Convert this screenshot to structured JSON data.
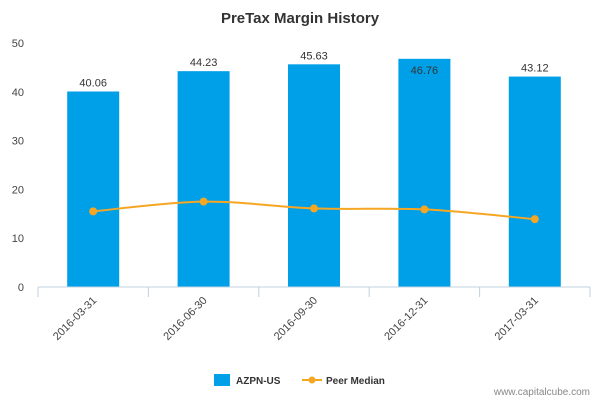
{
  "chart_data": {
    "type": "bar",
    "title": "PreTax Margin History",
    "categories": [
      "2016-03-31",
      "2016-06-30",
      "2016-09-30",
      "2016-12-31",
      "2017-03-31"
    ],
    "series": [
      {
        "name": "AZPN-US",
        "kind": "bar",
        "color": "#00a0e9",
        "values": [
          40.06,
          44.23,
          45.63,
          46.76,
          43.12
        ],
        "labels": [
          "40.06",
          "44.23",
          "45.63",
          "46.76",
          "43.12"
        ]
      },
      {
        "name": "Peer Median",
        "kind": "line",
        "color": "#f5a623",
        "values": [
          15.5,
          17.5,
          16.1,
          15.9,
          13.9
        ]
      }
    ],
    "ylim": [
      0,
      50
    ],
    "yticks": [
      0,
      10,
      20,
      30,
      40,
      50
    ],
    "xlabel": "",
    "ylabel": "",
    "grid": false,
    "legend": "bottom-center"
  },
  "watermark": "www.capitalcube.com"
}
